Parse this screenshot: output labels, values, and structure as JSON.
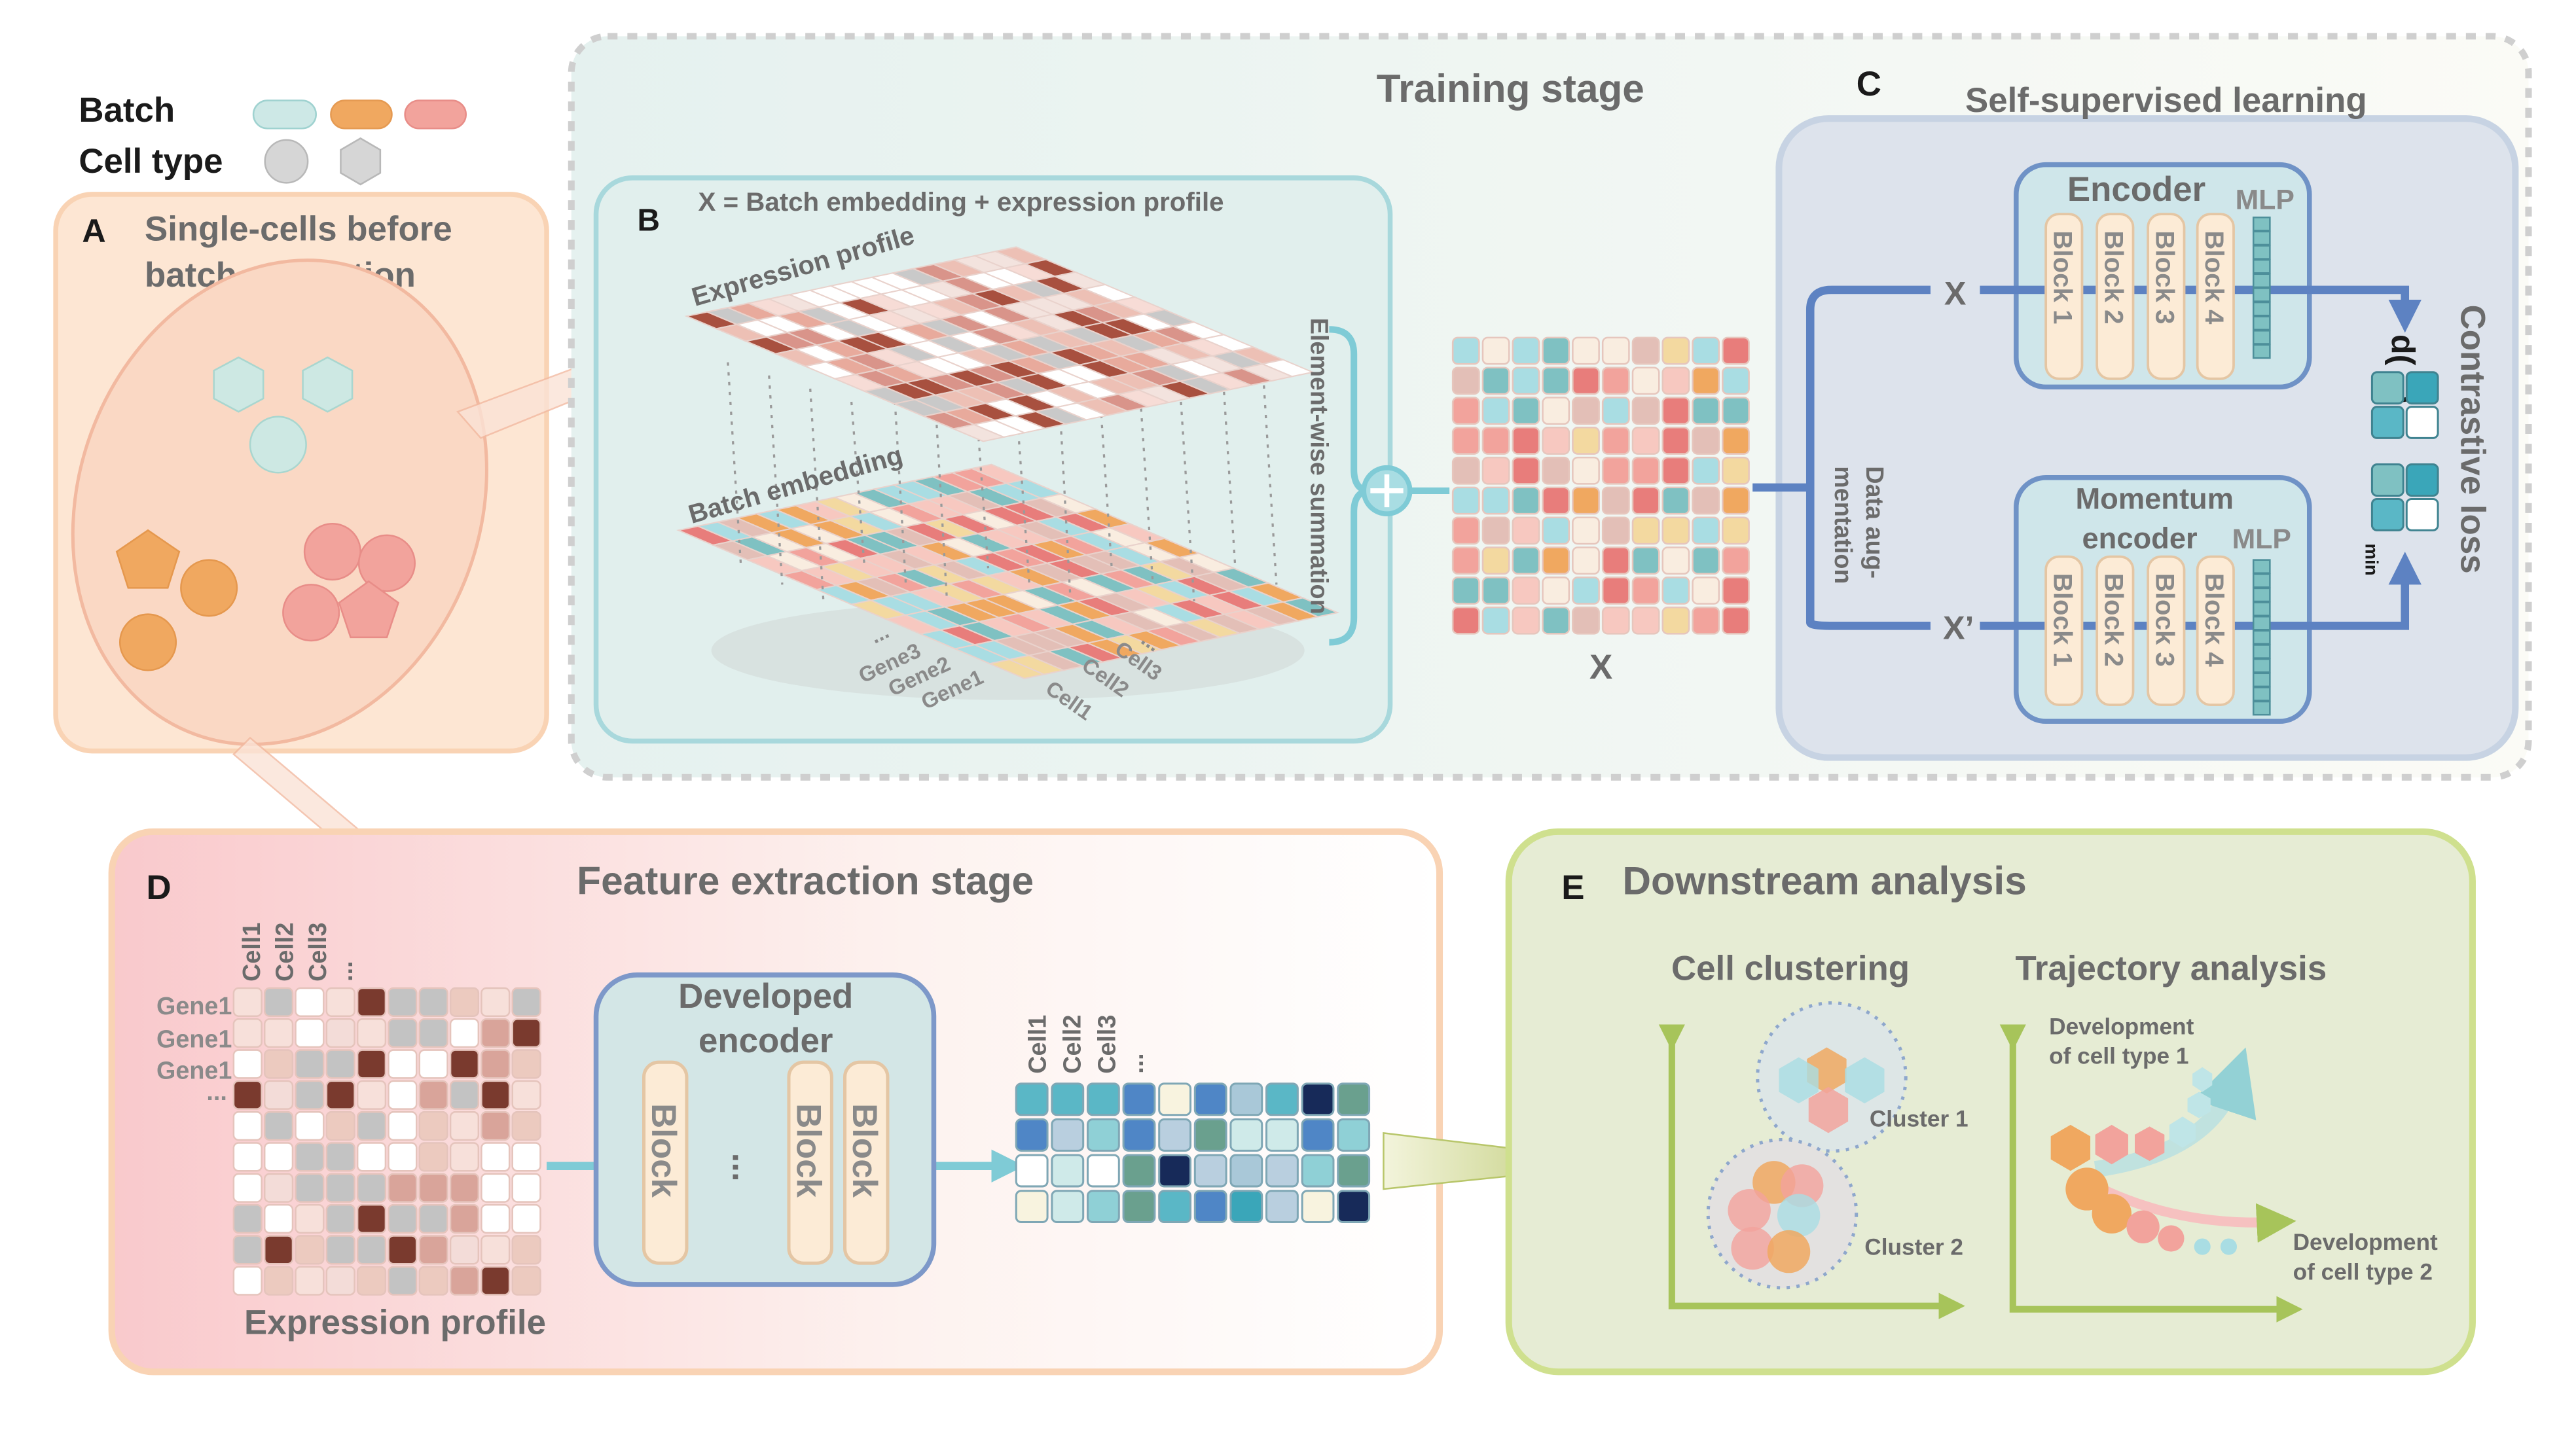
{
  "legend": {
    "batch": "Batch",
    "cell_type": "Cell type"
  },
  "panel_a": {
    "letter": "A",
    "title": [
      "Single-cells before",
      "batch correction"
    ]
  },
  "training": {
    "title": "Training stage"
  },
  "panel_b": {
    "letter": "B",
    "formula": "X = Batch embedding + expression profile",
    "expression_profile": "Expression profile",
    "batch_embedding": "Batch embedding",
    "summation": "Element-wise summation",
    "genes": [
      "...",
      "Gene3",
      "Gene2",
      "Gene1"
    ],
    "cells": [
      "Cell1",
      "Cell2",
      "Cell3",
      "..."
    ],
    "x_label": "X"
  },
  "panel_c": {
    "letter": "C",
    "title": "Self-supervised learning",
    "encoder": "Encoder",
    "momentum_encoder": [
      "Momentum",
      "encoder"
    ],
    "mlp": "MLP",
    "blocks": [
      "Block 1",
      "Block 2",
      "Block 3",
      "Block 4"
    ],
    "x": "X",
    "x_prime": "X’",
    "augmentation": [
      "Data aug-",
      "mentation"
    ],
    "loss": "Contrastive loss",
    "distance": "d(   ,   )",
    "min": "min"
  },
  "panel_d": {
    "letter": "D",
    "title": "Feature extraction stage",
    "cells": [
      "Cell1",
      "Cell2",
      "Cell3",
      "..."
    ],
    "genes": [
      "Gene1",
      "Gene1",
      "Gene1",
      "..."
    ],
    "matrix_label": "Expression profile",
    "encoder": [
      "Developed",
      "encoder"
    ],
    "block": "Block",
    "ellipsis": "..."
  },
  "panel_e": {
    "letter": "E",
    "title": "Downstream analysis",
    "clustering": "Cell clustering",
    "trajectory": "Trajectory analysis",
    "cluster1": "Cluster 1",
    "cluster2": "Cluster 2",
    "dev1": [
      "Development",
      "of cell type 1"
    ],
    "dev2": [
      "Development",
      "of cell type 2"
    ]
  }
}
